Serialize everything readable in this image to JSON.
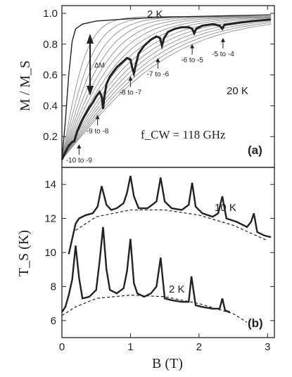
{
  "chart_data": [
    {
      "panel": "(a)",
      "type": "line",
      "xlabel": "B (T)",
      "ylabel": "M / M_S",
      "xlim": [
        0,
        3.1
      ],
      "ylim": [
        0,
        1.05
      ],
      "yticks": [
        "0.2",
        "0.4",
        "0.6",
        "0.8",
        "1.0"
      ],
      "frequency_label": "f_CW = 118 GHz",
      "temperature_labels": [
        "2 K",
        "20 K"
      ],
      "delta_label": "ΔM",
      "color": "#222222",
      "grey_color": "#8f8f8f",
      "series": [
        {
          "name": "2 K",
          "x": [
            0,
            0.05,
            0.1,
            0.15,
            0.2,
            0.3,
            0.5,
            1.0,
            1.5,
            2.0,
            2.5,
            3.05
          ],
          "values": [
            0.05,
            0.3,
            0.6,
            0.82,
            0.9,
            0.93,
            0.95,
            0.965,
            0.975,
            0.98,
            0.985,
            0.99
          ]
        },
        {
          "name": "emission",
          "x": [
            0,
            0.05,
            0.1,
            0.15,
            0.18,
            0.2,
            0.22,
            0.26,
            0.3,
            0.35,
            0.4,
            0.45,
            0.5,
            0.55,
            0.58,
            0.6,
            0.62,
            0.65,
            0.7,
            0.8,
            0.9,
            0.95,
            1.0,
            1.03,
            1.05,
            1.08,
            1.12,
            1.2,
            1.3,
            1.38,
            1.43,
            1.46,
            1.49,
            1.55,
            1.65,
            1.75,
            1.85,
            1.9,
            1.93,
            1.96,
            2.05,
            2.2,
            2.3,
            2.34,
            2.37,
            2.45,
            2.6,
            2.8,
            3.05
          ],
          "values": [
            0.05,
            0.1,
            0.14,
            0.165,
            0.17,
            0.2,
            0.23,
            0.27,
            0.31,
            0.35,
            0.39,
            0.42,
            0.46,
            0.49,
            0.46,
            0.38,
            0.46,
            0.54,
            0.59,
            0.65,
            0.69,
            0.71,
            0.7,
            0.64,
            0.61,
            0.67,
            0.74,
            0.79,
            0.83,
            0.85,
            0.84,
            0.79,
            0.84,
            0.88,
            0.9,
            0.91,
            0.91,
            0.9,
            0.87,
            0.9,
            0.92,
            0.93,
            0.92,
            0.9,
            0.925,
            0.93,
            0.94,
            0.95,
            0.96
          ]
        }
      ],
      "transition_labels": [
        {
          "text": "-10 to -9",
          "x": 0.25,
          "y": 0.05
        },
        {
          "text": "-9 to -8",
          "x": 0.52,
          "y": 0.24
        },
        {
          "text": "-8 to -7",
          "x": 1.0,
          "y": 0.49
        },
        {
          "text": "-7 to -6",
          "x": 1.4,
          "y": 0.61
        },
        {
          "text": "-6 to -5",
          "x": 1.9,
          "y": 0.7
        },
        {
          "text": "-5 to -4",
          "x": 2.35,
          "y": 0.74
        }
      ],
      "panel_label": "(a)"
    },
    {
      "panel": "(b)",
      "type": "line",
      "xlabel": "B (T)",
      "ylabel": "T_S (K)",
      "xlim": [
        0,
        3.1
      ],
      "ylim": [
        5,
        15
      ],
      "xticks": [
        "0",
        "1",
        "2",
        "3"
      ],
      "yticks": [
        "6",
        "8",
        "10",
        "12",
        "14"
      ],
      "series": [
        {
          "name": "10 K",
          "x": [
            0.1,
            0.15,
            0.2,
            0.25,
            0.35,
            0.45,
            0.52,
            0.58,
            0.65,
            0.72,
            0.8,
            0.9,
            0.95,
            1.0,
            1.05,
            1.12,
            1.25,
            1.38,
            1.44,
            1.5,
            1.6,
            1.75,
            1.85,
            1.9,
            1.95,
            2.05,
            2.2,
            2.28,
            2.34,
            2.4,
            2.55,
            2.7,
            2.76,
            2.8,
            2.85,
            2.95,
            3.05
          ],
          "values": [
            9.9,
            10.8,
            11.7,
            12.0,
            12.2,
            12.3,
            12.7,
            13.9,
            12.8,
            12.5,
            12.6,
            12.9,
            13.5,
            14.5,
            13.3,
            12.6,
            12.6,
            13.0,
            14.4,
            13.0,
            12.6,
            12.5,
            12.8,
            14.1,
            12.7,
            12.3,
            12.1,
            12.3,
            13.3,
            12.0,
            11.8,
            11.5,
            11.8,
            12.3,
            11.2,
            11.0,
            10.9
          ]
        },
        {
          "name": "10 K baseline",
          "x": [
            0.2,
            0.5,
            1.0,
            1.5,
            2.0,
            2.5,
            3.0
          ],
          "values": [
            11.3,
            12.1,
            12.5,
            12.5,
            12.2,
            11.6,
            10.7
          ]
        },
        {
          "name": "2 K",
          "x": [
            0,
            0.05,
            0.1,
            0.15,
            0.2,
            0.25,
            0.3,
            0.4,
            0.5,
            0.55,
            0.6,
            0.65,
            0.7,
            0.8,
            0.9,
            0.95,
            1.0,
            1.05,
            1.1,
            1.2,
            1.3,
            1.38,
            1.44,
            1.5,
            1.6,
            1.75,
            1.85,
            1.89,
            1.95,
            2.05,
            2.2,
            2.3,
            2.34,
            2.38,
            2.45
          ],
          "values": [
            6.5,
            6.8,
            7.5,
            8.4,
            10.4,
            8.5,
            7.3,
            7.4,
            7.8,
            9.5,
            11.5,
            9.0,
            7.8,
            7.6,
            7.9,
            8.9,
            10.8,
            8.2,
            7.6,
            7.4,
            7.6,
            8.0,
            9.7,
            7.3,
            7.2,
            7.1,
            7.1,
            8.6,
            6.9,
            6.8,
            6.7,
            6.7,
            7.3,
            6.6,
            6.5
          ]
        },
        {
          "name": "2 K baseline",
          "x": [
            0,
            0.2,
            0.5,
            1.0,
            1.5,
            2.0,
            2.5,
            2.7
          ],
          "values": [
            6.3,
            6.8,
            7.3,
            7.5,
            7.4,
            7.0,
            6.4,
            5.9
          ]
        }
      ],
      "temperature_labels": [
        "10 K",
        "2 K"
      ],
      "panel_label": "(b)"
    }
  ]
}
